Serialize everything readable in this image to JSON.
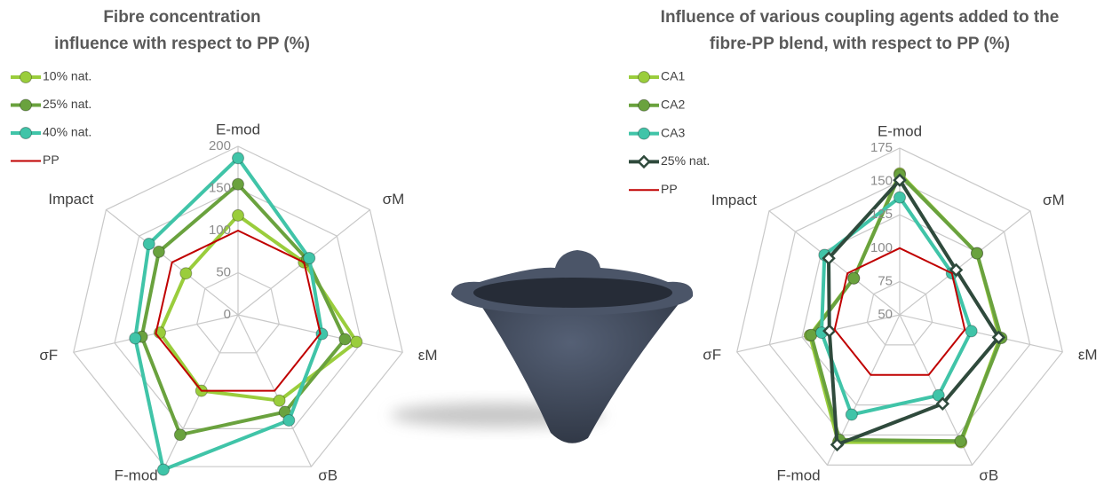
{
  "chart_data": [
    {
      "type": "radar",
      "title": [
        "Fibre concentration",
        "influence with respect to PP (%)"
      ],
      "categories": [
        "E-mod",
        "σM",
        "εM",
        "σB",
        "F-mod",
        "σF",
        "Impact"
      ],
      "ylim": [
        0,
        200
      ],
      "yticks": [
        0,
        50,
        100,
        150,
        200
      ],
      "grid": true,
      "legend": "top-left",
      "series": [
        {
          "name": "10% nat.",
          "color": "#9acd3c",
          "marker": "circle",
          "values": [
            118,
            100,
            144,
            113,
            100,
            95,
            79
          ]
        },
        {
          "name": "25% nat.",
          "color": "#6aa23e",
          "marker": "circle",
          "values": [
            155,
            105,
            130,
            128,
            158,
            117,
            120
          ]
        },
        {
          "name": "40% nat.",
          "color": "#40c4a8",
          "marker": "circle",
          "values": [
            186,
            108,
            102,
            139,
            204,
            125,
            135
          ]
        },
        {
          "name": "PP",
          "color": "#c00000",
          "marker": "none",
          "values": [
            100,
            100,
            100,
            100,
            100,
            100,
            100
          ]
        }
      ]
    },
    {
      "type": "radar",
      "title": [
        "Influence of various coupling agents added to the",
        "fibre-PP blend, with respect to PP (%)"
      ],
      "categories": [
        "E-mod",
        "σM",
        "εM",
        "σB",
        "F-mod",
        "σF",
        "Impact"
      ],
      "ylim": [
        50,
        175
      ],
      "yticks": [
        50,
        75,
        100,
        125,
        150,
        175
      ],
      "grid": true,
      "legend": "top-left",
      "series": [
        {
          "name": "CA1",
          "color": "#9acd3c",
          "marker": "circle",
          "values": [
            156,
            124,
            127,
            156,
            156,
            119,
            94
          ]
        },
        {
          "name": "CA2",
          "color": "#6aa23e",
          "marker": "circle",
          "values": [
            155,
            124,
            128,
            155,
            154,
            118,
            94
          ]
        },
        {
          "name": "CA3",
          "color": "#40c4a8",
          "marker": "circle",
          "values": [
            138,
            100,
            105,
            117,
            133,
            110,
            122
          ]
        },
        {
          "name": "25% nat.",
          "color": "#2f4a3c",
          "marker": "diamond",
          "values": [
            151,
            104,
            126,
            124,
            158,
            104,
            118
          ]
        },
        {
          "name": "PP",
          "color": "#c00000",
          "marker": "none",
          "values": [
            100,
            100,
            100,
            100,
            100,
            100,
            100
          ]
        }
      ]
    }
  ]
}
